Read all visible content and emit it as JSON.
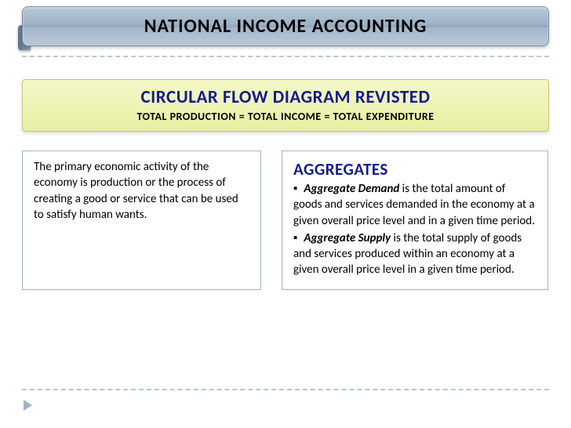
{
  "colors": {
    "banner_blue_bg_top": "#b7c7d6",
    "banner_blue_bg_mid": "#8ea5bb",
    "banner_blue_border": "#7a8da0",
    "banner_yellow_bg": "#eef4b6",
    "banner_yellow_border": "#c7c48a",
    "title_navy": "#141b8e",
    "divider": "#b7c7d6",
    "card_border": "#9fb6c9",
    "text": "#000000"
  },
  "header": {
    "title": "NATIONAL INCOME ACCOUNTING"
  },
  "subheader": {
    "title": "CIRCULAR FLOW DIAGRAM REVISTED",
    "subtitle": "TOTAL PRODUCTION = TOTAL INCOME = TOTAL EXPENDITURE"
  },
  "left_card": {
    "text": "The primary economic activity of the economy is production or the process of creating a good or service that can be used to satisfy human wants."
  },
  "right_card": {
    "title": "AGGREGATES",
    "items": [
      {
        "term": "Aggregate Demand",
        "desc": " is the total amount of goods and services demanded in the economy at a given overall price level and in a given time period."
      },
      {
        "term": "Aggregate Supply",
        "desc": " is the total supply of goods and services produced within an economy at a given overall price level in a given time period."
      }
    ]
  }
}
